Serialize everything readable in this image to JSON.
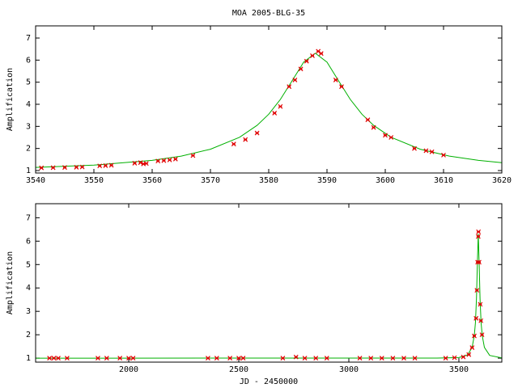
{
  "chart_data": [
    {
      "type": "line",
      "title": "MOA 2005-BLG-35",
      "ylabel": "Amplification",
      "xlim": [
        3540,
        3620
      ],
      "xticks": [
        3540,
        3550,
        3560,
        3570,
        3580,
        3590,
        3600,
        3610,
        3620
      ],
      "ylim": [
        0.89,
        7.55
      ],
      "yticks": [
        1,
        2,
        3,
        4,
        5,
        6,
        7
      ],
      "series": [
        {
          "style": "line",
          "color": "#00b000",
          "x": [
            3540,
            3550,
            3560,
            3565,
            3570,
            3575,
            3578,
            3580,
            3582,
            3584,
            3586,
            3588,
            3590,
            3592,
            3594,
            3596,
            3598,
            3601,
            3606,
            3611,
            3616,
            3620
          ],
          "values": [
            1.142,
            1.246,
            1.46,
            1.653,
            1.966,
            2.508,
            3.045,
            3.55,
            4.219,
            5.057,
            5.909,
            6.31,
            5.909,
            5.057,
            4.219,
            3.55,
            3.045,
            2.508,
            1.966,
            1.653,
            1.46,
            1.354
          ]
        },
        {
          "style": "points",
          "color": "#e00000",
          "x": [
            3541,
            3543,
            3545,
            3547,
            3548,
            3551,
            3552,
            3553,
            3557,
            3558,
            3558.5,
            3559,
            3561,
            3562,
            3563,
            3564,
            3567,
            3574,
            3576,
            3578,
            3581,
            3582,
            3583.5,
            3584.5,
            3585.5,
            3586.5,
            3587.5,
            3588.5,
            3589,
            3591.5,
            3592.5,
            3597,
            3598,
            3600,
            3601,
            3605,
            3607,
            3608,
            3610
          ],
          "values": [
            1.12,
            1.13,
            1.14,
            1.15,
            1.16,
            1.21,
            1.22,
            1.24,
            1.33,
            1.36,
            1.3,
            1.32,
            1.43,
            1.45,
            1.48,
            1.52,
            1.68,
            2.2,
            2.4,
            2.7,
            3.6,
            3.9,
            4.8,
            5.1,
            5.6,
            5.95,
            6.2,
            6.4,
            6.3,
            5.1,
            4.8,
            3.3,
            2.95,
            2.6,
            2.5,
            2.0,
            1.9,
            1.85,
            1.7
          ]
        }
      ]
    },
    {
      "type": "line",
      "ylabel": "Amplification",
      "xlabel": "JD - 2450000",
      "xlim": [
        1577,
        3695
      ],
      "xticks": [
        2000,
        2500,
        3000,
        3500
      ],
      "ylim": [
        0.83,
        7.6
      ],
      "yticks": [
        1,
        2,
        3,
        4,
        5,
        6,
        7
      ],
      "series": [
        {
          "style": "line",
          "color": "#00b000",
          "x": [
            1577,
            3400,
            3500,
            3540,
            3560,
            3570,
            3575,
            3580,
            3584,
            3588,
            3592,
            3596,
            3601,
            3606,
            3616,
            3640,
            3695
          ],
          "values": [
            1.0,
            1.002,
            1.025,
            1.142,
            1.46,
            1.966,
            2.508,
            3.55,
            5.057,
            6.31,
            5.057,
            3.55,
            2.508,
            1.966,
            1.46,
            1.116,
            1.013
          ]
        },
        {
          "style": "points",
          "color": "#e00000",
          "x": [
            1640,
            1660,
            1680,
            1720,
            1860,
            1900,
            1960,
            2000,
            2020,
            2360,
            2400,
            2460,
            2500,
            2520,
            2700,
            2760,
            2800,
            2850,
            2900,
            3050,
            3100,
            3150,
            3200,
            3250,
            3300,
            3440,
            3480,
            3520,
            3545,
            3560,
            3570,
            3578,
            3582,
            3585,
            3588,
            3589,
            3592,
            3597,
            3600,
            3605
          ],
          "values": [
            1.0,
            1.0,
            1.0,
            1.0,
            1.0,
            1.0,
            1.0,
            1.0,
            1.0,
            1.0,
            1.0,
            1.0,
            1.0,
            1.0,
            1.0,
            1.05,
            1.0,
            1.0,
            1.0,
            1.0,
            1.0,
            1.0,
            1.0,
            1.0,
            1.0,
            1.0,
            1.02,
            1.05,
            1.15,
            1.45,
            1.95,
            2.7,
            3.9,
            5.1,
            6.2,
            6.4,
            5.1,
            3.3,
            2.6,
            2.0
          ]
        }
      ]
    }
  ]
}
